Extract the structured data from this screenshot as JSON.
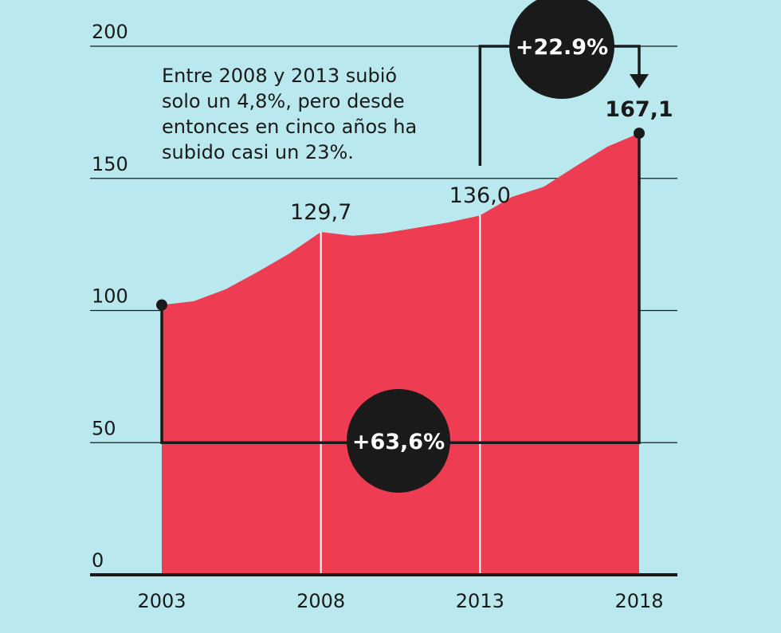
{
  "colors": {
    "background": "#b9e8ee",
    "area": "#ee3c52",
    "ink": "#1a1a1a",
    "grid": "#1a1a1a",
    "badge_text": "#ffffff"
  },
  "annotation": {
    "text": "Entre 2008 y 2013 subió solo un 4,8%, pero desde entonces en cinco años ha subido casi un 23%."
  },
  "badges": {
    "long_term": "+63,6%",
    "recent": "+22.9%"
  },
  "chart_data": {
    "type": "area",
    "title": "",
    "xlabel": "",
    "ylabel": "",
    "x": [
      2003,
      2004,
      2005,
      2006,
      2007,
      2008,
      2009,
      2010,
      2011,
      2012,
      2013,
      2014,
      2015,
      2016,
      2017,
      2018
    ],
    "values": [
      102.1,
      103.5,
      108.0,
      114.5,
      121.5,
      129.7,
      128.3,
      129.3,
      131.3,
      133.3,
      136.0,
      143.0,
      146.8,
      154.5,
      162.0,
      167.1
    ],
    "xticks": [
      "2003",
      "2008",
      "2013",
      "2018"
    ],
    "yticks": [
      "0",
      "50",
      "100",
      "150",
      "200"
    ],
    "ylim": [
      0,
      200
    ],
    "xlim": [
      2003,
      2018
    ],
    "grid": true,
    "data_labels": [
      {
        "x": 2008,
        "text": "129,7",
        "bold": false
      },
      {
        "x": 2013,
        "text": "136,0",
        "bold": false
      },
      {
        "x": 2018,
        "text": "167,1",
        "bold": true
      }
    ]
  }
}
